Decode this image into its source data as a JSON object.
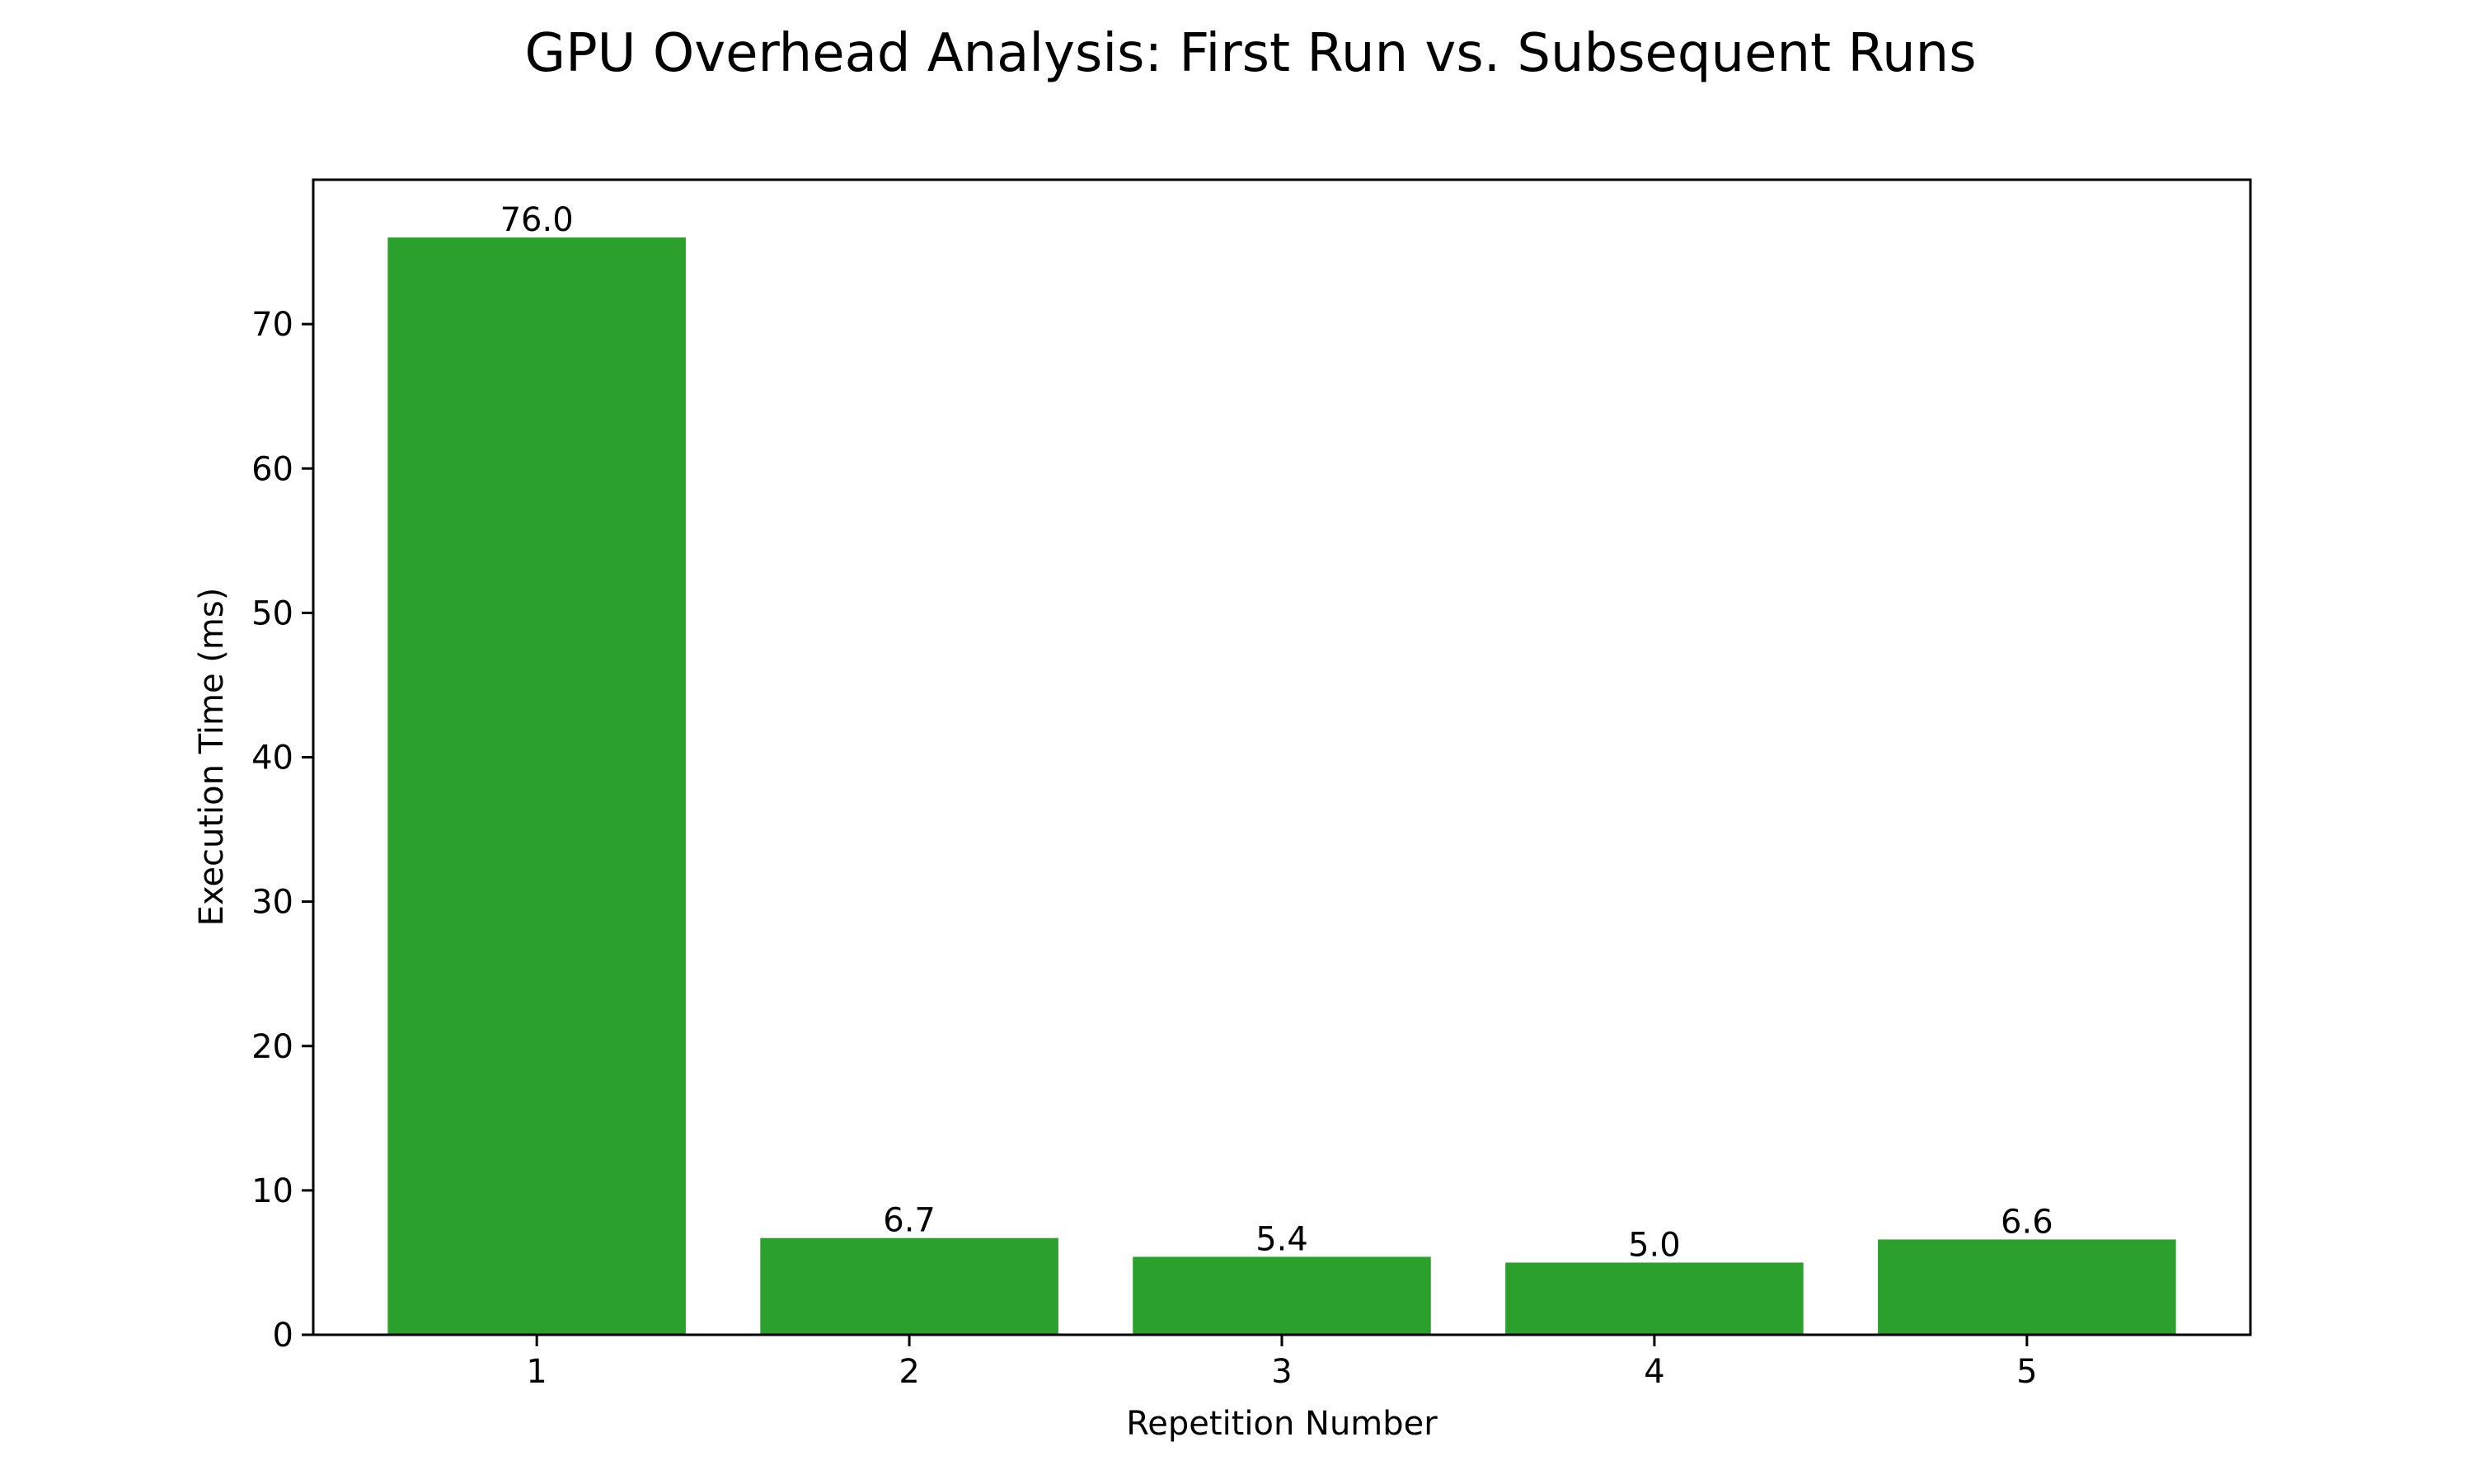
{
  "chart_data": {
    "type": "bar",
    "title": "GPU Overhead Analysis: First Run vs. Subsequent Runs",
    "xlabel": "Repetition Number",
    "ylabel": "Execution Time (ms)",
    "categories": [
      "1",
      "2",
      "3",
      "4",
      "5"
    ],
    "values": [
      76.0,
      6.7,
      5.4,
      5.0,
      6.6
    ],
    "data_labels": [
      "76.0",
      "6.7",
      "5.4",
      "5.0",
      "6.6"
    ],
    "ylim": [
      0,
      80
    ],
    "yticks": [
      0,
      10,
      20,
      30,
      40,
      50,
      60,
      70
    ],
    "grid": false,
    "bar_color": "#2ca02c"
  }
}
